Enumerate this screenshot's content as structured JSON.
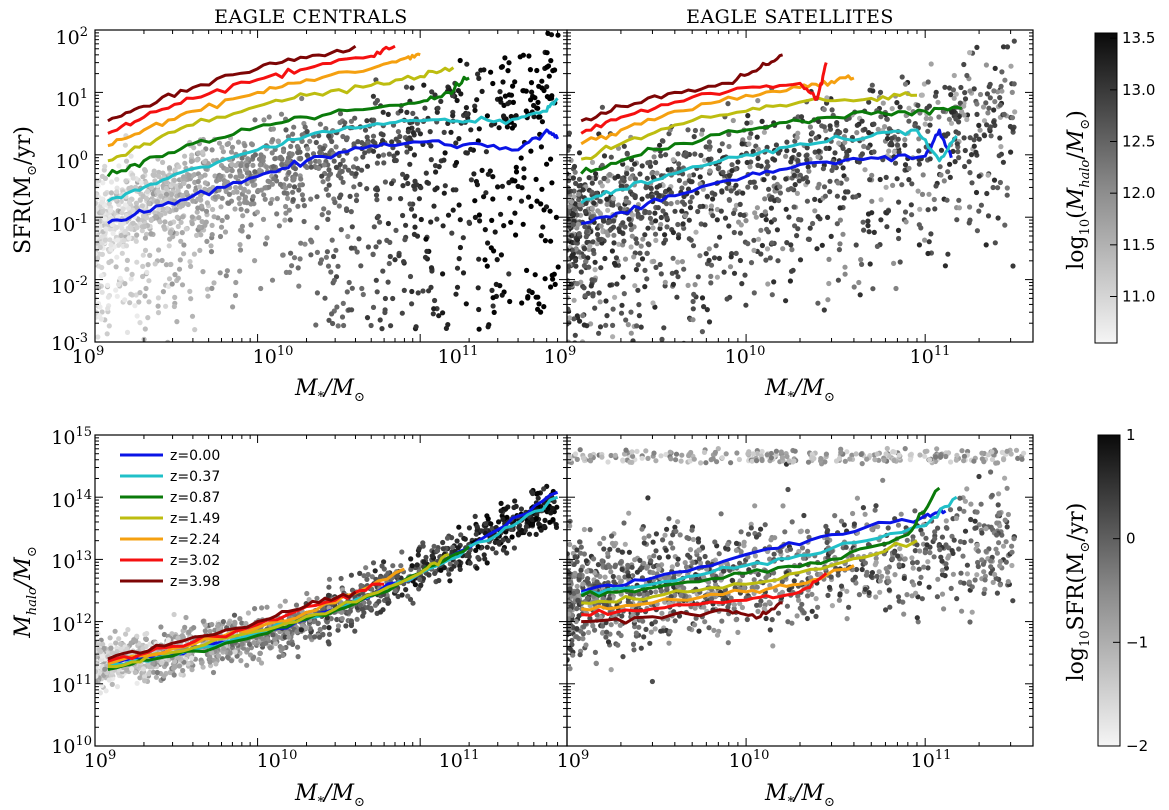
{
  "panel_titles": {
    "centrals": "EAGLE CENTRALS",
    "satellites": "EAGLE SATELLITES"
  },
  "axis_labels": {
    "x": "M*/M⊙",
    "top_y": "SFR(M⊙/yr)",
    "bottom_y": "Mhalo/M⊙",
    "top_colorbar": "log10(Mhalo/M⊙)",
    "bottom_colorbar": "log10SFR(M⊙/yr)"
  },
  "colors": {
    "z=0.00": "#0a14e6",
    "z=0.37": "#20c0c8",
    "z=0.87": "#0a7a0a",
    "z=1.49": "#bdbd10",
    "z=2.24": "#f5a010",
    "z=3.02": "#f51010",
    "z=3.98": "#7d0505"
  },
  "legend": [
    "z=0.00",
    "z=0.37",
    "z=0.87",
    "z=1.49",
    "z=2.24",
    "z=3.02",
    "z=3.98"
  ],
  "chart_data": [
    {
      "type": "line",
      "title": "EAGLE CENTRALS",
      "xlabel": "M*/M⊙",
      "ylabel": "SFR(M⊙/yr)",
      "xscale": "log",
      "yscale": "log",
      "xlim": [
        1000000000.0,
        800000000000.0
      ],
      "ylim": [
        0.001,
        100.0
      ],
      "xticks": [
        "10^9",
        "10^10",
        "10^11"
      ],
      "yticks": [
        "10^-3",
        "10^-2",
        "10^-1",
        "10^0",
        "10^1",
        "10^2"
      ],
      "scatter": "grey points coloured by log10(Mhalo/M⊙)",
      "series": [
        {
          "name": "z=0.00",
          "x": [
            1200000000.0,
            2000000000.0,
            4000000000.0,
            10000000000.0,
            20000000000.0,
            50000000000.0,
            100000000000.0,
            200000000000.0,
            400000000000.0,
            600000000000.0,
            700000000000.0
          ],
          "y": [
            0.08,
            0.12,
            0.22,
            0.45,
            0.8,
            1.4,
            1.6,
            1.5,
            1.2,
            2.5,
            1.8
          ]
        },
        {
          "name": "z=0.37",
          "x": [
            1200000000.0,
            2000000000.0,
            4000000000.0,
            10000000000.0,
            20000000000.0,
            50000000000.0,
            100000000000.0,
            200000000000.0,
            400000000000.0,
            600000000000.0,
            700000000000.0
          ],
          "y": [
            0.18,
            0.3,
            0.6,
            1.2,
            2.0,
            3.0,
            3.5,
            3.5,
            3.8,
            5.0,
            8.0
          ]
        },
        {
          "name": "z=0.87",
          "x": [
            1200000000.0,
            2000000000.0,
            4000000000.0,
            10000000000.0,
            20000000000.0,
            50000000000.0,
            100000000000.0,
            150000000000.0,
            200000000000.0
          ],
          "y": [
            0.45,
            0.8,
            1.5,
            2.8,
            4.0,
            5.5,
            7.0,
            10,
            17
          ]
        },
        {
          "name": "z=1.49",
          "x": [
            1200000000.0,
            2000000000.0,
            4000000000.0,
            10000000000.0,
            20000000000.0,
            50000000000.0,
            100000000000.0,
            160000000000.0
          ],
          "y": [
            0.8,
            1.5,
            3.0,
            6.0,
            9.0,
            13,
            18,
            25
          ]
        },
        {
          "name": "z=2.24",
          "x": [
            1200000000.0,
            2000000000.0,
            4000000000.0,
            10000000000.0,
            20000000000.0,
            50000000000.0,
            80000000000.0,
            100000000000.0
          ],
          "y": [
            1.4,
            2.5,
            5.0,
            10,
            16,
            24,
            35,
            40
          ]
        },
        {
          "name": "z=3.02",
          "x": [
            1200000000.0,
            2000000000.0,
            4000000000.0,
            10000000000.0,
            20000000000.0,
            50000000000.0,
            70000000000.0
          ],
          "y": [
            2.2,
            4.0,
            8.0,
            16,
            24,
            38,
            55
          ]
        },
        {
          "name": "z=3.98",
          "x": [
            1200000000.0,
            2000000000.0,
            4000000000.0,
            10000000000.0,
            20000000000.0,
            40000000000.0
          ],
          "y": [
            3.5,
            6.0,
            12,
            24,
            36,
            55
          ]
        }
      ]
    },
    {
      "type": "line",
      "title": "EAGLE SATELLITES",
      "xlabel": "M*/M⊙",
      "ylabel": "",
      "xscale": "log",
      "yscale": "log",
      "xlim": [
        1000000000.0,
        400000000000.0
      ],
      "ylim": [
        0.001,
        100.0
      ],
      "xticks": [
        "10^9",
        "10^10",
        "10^11"
      ],
      "scatter": "dark points coloured by log10(Mhalo/M⊙)",
      "series": [
        {
          "name": "z=0.00",
          "x": [
            1200000000.0,
            2000000000.0,
            4000000000.0,
            10000000000.0,
            20000000000.0,
            50000000000.0,
            100000000000.0,
            120000000000.0,
            140000000000.0
          ],
          "y": [
            0.08,
            0.12,
            0.22,
            0.45,
            0.7,
            0.9,
            0.95,
            2.5,
            0.9
          ]
        },
        {
          "name": "z=0.37",
          "x": [
            1200000000.0,
            2000000000.0,
            4000000000.0,
            10000000000.0,
            20000000000.0,
            50000000000.0,
            90000000000.0,
            120000000000.0,
            150000000000.0
          ],
          "y": [
            0.17,
            0.28,
            0.5,
            1.0,
            1.5,
            2.0,
            2.5,
            0.8,
            2.0
          ]
        },
        {
          "name": "z=0.87",
          "x": [
            1200000000.0,
            2000000000.0,
            4000000000.0,
            10000000000.0,
            20000000000.0,
            50000000000.0,
            100000000000.0,
            160000000000.0
          ],
          "y": [
            0.5,
            0.8,
            1.5,
            2.5,
            3.5,
            4.5,
            5.0,
            5.5
          ]
        },
        {
          "name": "z=1.49",
          "x": [
            1200000000.0,
            2000000000.0,
            4000000000.0,
            10000000000.0,
            20000000000.0,
            50000000000.0,
            90000000000.0
          ],
          "y": [
            0.85,
            1.5,
            3.0,
            5.0,
            7.0,
            8.0,
            9.0
          ]
        },
        {
          "name": "z=2.24",
          "x": [
            1200000000.0,
            2000000000.0,
            4000000000.0,
            10000000000.0,
            20000000000.0,
            30000000000.0,
            40000000000.0
          ],
          "y": [
            1.5,
            2.5,
            5.0,
            9.0,
            12,
            15,
            17
          ]
        },
        {
          "name": "z=3.02",
          "x": [
            1200000000.0,
            2000000000.0,
            4000000000.0,
            10000000000.0,
            20000000000.0,
            25000000000.0,
            28000000000.0
          ],
          "y": [
            2.2,
            4.0,
            7.0,
            12,
            14,
            8.0,
            30
          ]
        },
        {
          "name": "z=3.98",
          "x": [
            1200000000.0,
            2000000000.0,
            4000000000.0,
            8000000000.0,
            12000000000.0,
            16000000000.0
          ],
          "y": [
            3.5,
            6.0,
            10,
            14,
            25,
            40
          ]
        }
      ]
    },
    {
      "type": "line",
      "title": "",
      "xlabel": "M*/M⊙",
      "ylabel": "Mhalo/M⊙",
      "xscale": "log",
      "yscale": "log",
      "xlim": [
        1000000000.0,
        800000000000.0
      ],
      "ylim": [
        10000000000.0,
        1000000000000000.0
      ],
      "yticks": [
        "10^10",
        "10^11",
        "10^12",
        "10^13",
        "10^14",
        "10^15"
      ],
      "scatter": "grey points coloured by log10SFR(M⊙/yr)",
      "series": [
        {
          "name": "z=0.00",
          "x": [
            1200000000.0,
            3000000000.0,
            10000000000.0,
            30000000000.0,
            100000000000.0,
            300000000000.0,
            700000000000.0
          ],
          "y": [
            210000000000.0,
            300000000000.0,
            650000000000.0,
            1600000000000.0,
            6000000000000.0,
            30000000000000.0,
            120000000000000.0
          ]
        },
        {
          "name": "z=0.37",
          "x": [
            1200000000.0,
            3000000000.0,
            10000000000.0,
            30000000000.0,
            100000000000.0,
            300000000000.0,
            700000000000.0
          ],
          "y": [
            200000000000.0,
            280000000000.0,
            650000000000.0,
            1500000000000.0,
            6000000000000.0,
            25000000000000.0,
            100000000000000.0
          ]
        },
        {
          "name": "z=0.87",
          "x": [
            1200000000.0,
            3000000000.0,
            10000000000.0,
            30000000000.0,
            100000000000.0,
            200000000000.0
          ],
          "y": [
            170000000000.0,
            280000000000.0,
            600000000000.0,
            1500000000000.0,
            6000000000000.0,
            16000000000000.0
          ]
        },
        {
          "name": "z=1.49",
          "x": [
            1200000000.0,
            3000000000.0,
            10000000000.0,
            30000000000.0,
            100000000000.0,
            150000000000.0
          ],
          "y": [
            190000000000.0,
            320000000000.0,
            700000000000.0,
            1600000000000.0,
            6000000000000.0,
            12000000000000.0
          ]
        },
        {
          "name": "z=2.24",
          "x": [
            1200000000.0,
            3000000000.0,
            10000000000.0,
            30000000000.0,
            80000000000.0
          ],
          "y": [
            210000000000.0,
            370000000000.0,
            800000000000.0,
            2000000000000.0,
            7000000000000.0
          ]
        },
        {
          "name": "z=3.02",
          "x": [
            1200000000.0,
            3000000000.0,
            10000000000.0,
            30000000000.0,
            60000000000.0
          ],
          "y": [
            230000000000.0,
            400000000000.0,
            900000000000.0,
            2200000000000.0,
            4000000000000.0
          ]
        },
        {
          "name": "z=3.98",
          "x": [
            1200000000.0,
            3000000000.0,
            10000000000.0,
            20000000000.0,
            40000000000.0
          ],
          "y": [
            250000000000.0,
            450000000000.0,
            1000000000000.0,
            1800000000000.0,
            3000000000000.0
          ]
        }
      ]
    },
    {
      "type": "line",
      "title": "",
      "xlabel": "M*/M⊙",
      "ylabel": "",
      "xscale": "log",
      "yscale": "log",
      "xlim": [
        1000000000.0,
        400000000000.0
      ],
      "ylim": [
        10000000000.0,
        1000000000000000.0
      ],
      "scatter": "grey points coloured by log10SFR(M⊙/yr)",
      "series": [
        {
          "name": "z=0.00",
          "x": [
            1200000000.0,
            3000000000.0,
            10000000000.0,
            30000000000.0,
            100000000000.0,
            130000000000.0
          ],
          "y": [
            3000000000000.0,
            5000000000000.0,
            12000000000000.0,
            25000000000000.0,
            50000000000000.0,
            60000000000000.0
          ]
        },
        {
          "name": "z=0.37",
          "x": [
            1200000000.0,
            3000000000.0,
            10000000000.0,
            30000000000.0,
            100000000000.0,
            150000000000.0
          ],
          "y": [
            2800000000000.0,
            4000000000000.0,
            8000000000000.0,
            15000000000000.0,
            35000000000000.0,
            100000000000000.0
          ]
        },
        {
          "name": "z=0.87",
          "x": [
            1200000000.0,
            3000000000.0,
            10000000000.0,
            30000000000.0,
            80000000000.0,
            120000000000.0
          ],
          "y": [
            2600000000000.0,
            3500000000000.0,
            6000000000000.0,
            10000000000000.0,
            25000000000000.0,
            140000000000000.0
          ]
        },
        {
          "name": "z=1.49",
          "x": [
            1200000000.0,
            3000000000.0,
            10000000000.0,
            30000000000.0,
            90000000000.0
          ],
          "y": [
            2000000000000.0,
            2500000000000.0,
            4000000000000.0,
            8000000000000.0,
            20000000000000.0
          ]
        },
        {
          "name": "z=2.24",
          "x": [
            1200000000.0,
            3000000000.0,
            10000000000.0,
            20000000000.0,
            40000000000.0
          ],
          "y": [
            1600000000000.0,
            2000000000000.0,
            3000000000000.0,
            4000000000000.0,
            8000000000000.0
          ]
        },
        {
          "name": "z=3.02",
          "x": [
            1200000000.0,
            3000000000.0,
            10000000000.0,
            20000000000.0,
            28000000000.0
          ],
          "y": [
            1300000000000.0,
            1600000000000.0,
            2200000000000.0,
            3000000000000.0,
            6000000000000.0
          ]
        },
        {
          "name": "z=3.98",
          "x": [
            1200000000.0,
            3000000000.0,
            8000000000.0,
            12000000000.0,
            16000000000.0
          ],
          "y": [
            1000000000000.0,
            1200000000000.0,
            1500000000000.0,
            1200000000000.0,
            2000000000000.0
          ]
        }
      ]
    }
  ],
  "colorbars": [
    {
      "label": "log10(Mhalo/M⊙)",
      "ticks": [
        "11.0",
        "11.5",
        "12.0",
        "12.5",
        "13.0",
        "13.5"
      ],
      "range": [
        10.55,
        13.55
      ]
    },
    {
      "label": "log10SFR(M⊙/yr)",
      "ticks": [
        "−2",
        "−1",
        "0",
        "1"
      ],
      "range": [
        -2,
        1
      ]
    }
  ]
}
